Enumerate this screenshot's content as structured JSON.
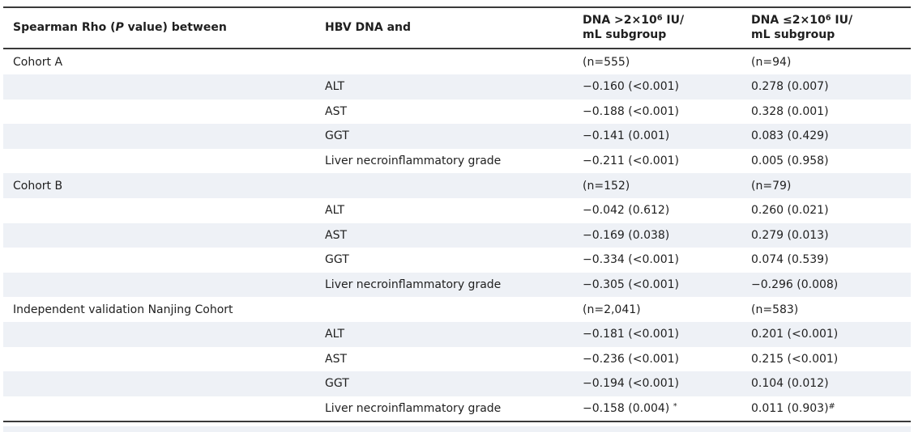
{
  "style": {
    "background_color": "#ffffff",
    "stripe_color": "#eef1f6",
    "rule_color": "#3a3a3a",
    "text_color": "#1f1f1f"
  },
  "table": {
    "header": [
      {
        "name": "spearman-rho-header",
        "segments": [
          {
            "text": "Spearman Rho ("
          },
          {
            "text": "P",
            "style": "italic"
          },
          {
            "text": " value) between"
          }
        ]
      },
      {
        "name": "hbv-dna-header",
        "segments": [
          {
            "text": "HBV DNA and"
          }
        ]
      },
      {
        "name": "dna-high-subgroup-header",
        "segments": [
          {
            "text": "DNA >2×10"
          },
          {
            "text": "6",
            "style": "sup"
          },
          {
            "text": " IU/"
          },
          {
            "style": "br"
          },
          {
            "text": "mL subgroup"
          }
        ]
      },
      {
        "name": "dna-low-subgroup-header",
        "segments": [
          {
            "text": "DNA ≤2×10"
          },
          {
            "text": "6",
            "style": "sup"
          },
          {
            "text": " IU/"
          },
          {
            "style": "br"
          },
          {
            "text": "mL subgroup"
          }
        ]
      }
    ],
    "rows": [
      {
        "cells": [
          "Cohort A",
          "",
          "(n=555)",
          "(n=94)"
        ]
      },
      {
        "cells": [
          "",
          "ALT",
          "−0.160 (<0.001)",
          "0.278 (0.007)"
        ]
      },
      {
        "cells": [
          "",
          "AST",
          "−0.188 (<0.001)",
          "0.328 (0.001)"
        ]
      },
      {
        "cells": [
          "",
          "GGT",
          "−0.141 (0.001)",
          "0.083 (0.429)"
        ]
      },
      {
        "cells": [
          "",
          "Liver necroinflammatory grade",
          "−0.211 (<0.001)",
          "0.005 (0.958)"
        ]
      },
      {
        "cells": [
          "Cohort B",
          "",
          "(n=152)",
          "(n=79)"
        ]
      },
      {
        "cells": [
          "",
          "ALT",
          "−0.042 (0.612)",
          "0.260 (0.021)"
        ]
      },
      {
        "cells": [
          "",
          "AST",
          "−0.169 (0.038)",
          "0.279 (0.013)"
        ]
      },
      {
        "cells": [
          "",
          "GGT",
          "−0.334 (<0.001)",
          "0.074 (0.539)"
        ]
      },
      {
        "cells": [
          "",
          "Liver necroinflammatory grade",
          "−0.305 (<0.001)",
          "−0.296 (0.008)"
        ]
      },
      {
        "cells": [
          "Independent validation Nanjing Cohort",
          "",
          "(n=2,041)",
          "(n=583)"
        ]
      },
      {
        "cells": [
          "",
          "ALT",
          "−0.181 (<0.001)",
          "0.201 (<0.001)"
        ]
      },
      {
        "cells": [
          "",
          "AST",
          "−0.236 (<0.001)",
          "0.215 (<0.001)"
        ]
      },
      {
        "cells": [
          "",
          "GGT",
          "−0.194 (<0.001)",
          "0.104 (0.012)"
        ]
      },
      {
        "cells": [
          "",
          "Liver necroinflammatory grade",
          [
            {
              "text": "−0.158 (0.004) "
            },
            {
              "text": "*",
              "style": "sup"
            }
          ],
          [
            {
              "text": "0.011 (0.903)"
            },
            {
              "text": "#",
              "style": "sup"
            }
          ]
        ]
      }
    ]
  }
}
